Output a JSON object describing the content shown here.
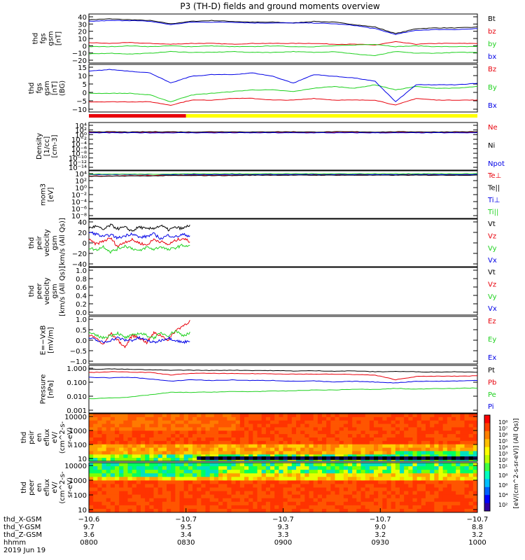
{
  "title": "P3 (TH-D) fields and ground moments overview",
  "colors": {
    "black": "#000000",
    "red": "#e8000b",
    "green": "#1fd11f",
    "blue": "#0000e6",
    "yellow": "#ffff00"
  },
  "chart_data": [
    {
      "id": "fgs-gsm-mag",
      "type": "line",
      "ylabel": [
        "thd",
        "fgs",
        "gsm",
        "[nT]"
      ],
      "yticks": [
        "40",
        "30",
        "20",
        "10",
        "0",
        "−10",
        "−20"
      ],
      "ylim": [
        -20,
        40
      ],
      "series": [
        {
          "name": "Bt",
          "color": "#000000",
          "values": [
            33,
            34,
            33,
            32,
            28,
            31,
            32,
            31,
            30,
            30,
            29,
            31,
            30,
            27,
            24,
            16,
            22,
            23,
            23,
            24
          ]
        },
        {
          "name": "bz",
          "color": "#e8000b",
          "values": [
            5,
            4,
            5,
            4,
            3,
            4,
            4,
            3,
            4,
            4,
            4,
            4,
            3,
            3,
            2,
            6,
            3,
            4,
            4,
            4
          ]
        },
        {
          "name": "by",
          "color": "#1fd11f",
          "values": [
            0,
            0,
            1,
            0,
            1,
            0,
            1,
            0,
            0,
            1,
            0,
            0,
            1,
            2,
            3,
            0,
            1,
            0,
            0,
            0
          ]
        },
        {
          "name": "bx",
          "color": "#0000e6",
          "values": [
            31,
            32,
            32,
            31,
            27,
            30,
            30,
            30,
            29,
            29,
            29,
            29,
            28,
            26,
            22,
            15,
            20,
            21,
            21,
            22
          ]
        }
      ],
      "extra_series": [
        {
          "name": "bx",
          "color": "#1fd11f",
          "values": [
            -9,
            -8,
            -9,
            -8,
            -6,
            -7,
            -7,
            -6,
            -7,
            -7,
            -6,
            -7,
            -6,
            -9,
            -11,
            -6,
            -8,
            -8,
            -7,
            -7
          ]
        }
      ]
    },
    {
      "id": "fgs-gsm-components",
      "type": "line",
      "ylabel": [
        "thd",
        "fgs",
        "gsm",
        "[nT]",
        "(BG)"
      ],
      "yticks": [
        "15",
        "10",
        "5",
        "0",
        "−5",
        "−10"
      ],
      "ylim": [
        -13,
        15
      ],
      "series": [
        {
          "name": "Bz",
          "color": "#e8000b",
          "values": [
            -7,
            -7,
            -7,
            -7,
            -9,
            -6,
            -6,
            -5,
            -5,
            -6,
            -6,
            -5,
            -6,
            -6,
            -6,
            -9,
            -5,
            -6,
            -6,
            -6
          ]
        },
        {
          "name": "By",
          "color": "#1fd11f",
          "values": [
            -2,
            -2,
            -2,
            -3,
            -7,
            -3,
            -2,
            -1,
            0,
            0,
            -1,
            1,
            2,
            1,
            3,
            0,
            2,
            1,
            1,
            2
          ]
        },
        {
          "name": "Bx",
          "color": "#0000e6",
          "values": [
            11,
            12,
            11,
            10,
            4,
            8,
            9,
            9,
            10,
            8,
            4,
            9,
            8,
            7,
            5,
            -7,
            3,
            3,
            3,
            4
          ]
        }
      ]
    },
    {
      "id": "density",
      "type": "line",
      "ylabel": [
        "Density",
        "[1/cc]",
        "[cm-3]"
      ],
      "yticks": [
        "10⁴",
        "10²",
        "10⁰",
        "10⁻²",
        "10⁻⁴",
        "10⁻⁶",
        "10⁻⁸",
        "10⁻¹⁰",
        "10⁻¹²",
        "10⁻¹⁴"
      ],
      "ylim": [
        -14,
        4
      ],
      "series": [
        {
          "name": "Ne",
          "color": "#e8000b",
          "values": [
            0.3,
            0.3,
            0.2,
            0.3,
            0.3,
            0.2,
            0.3,
            0.3,
            0.2,
            0.3,
            0.3,
            0.2,
            0.3,
            0.3,
            0.2,
            0.3,
            0.3,
            0.2,
            0.3,
            0.3
          ]
        },
        {
          "name": "Ni",
          "color": "#000000",
          "values": [
            0.5,
            0.5,
            0.4,
            0.5,
            0.5,
            0.4,
            0.5,
            0.5,
            0.4,
            0.5,
            0.5,
            0.4,
            0.5,
            0.5,
            0.4,
            0.5,
            0.5,
            0.4,
            0.5,
            0.5
          ]
        },
        {
          "name": "Npot",
          "color": "#0000e6",
          "values": [
            0.1,
            0.1,
            0.1,
            0.1,
            0.1,
            0.1,
            0.1,
            0.1,
            0.1,
            0.1,
            0.1,
            0.1,
            0.1,
            0.1,
            0.1,
            0.1,
            0.1,
            0.1,
            0.1,
            0.1
          ]
        }
      ]
    },
    {
      "id": "temperature",
      "type": "line",
      "ylabel": [
        "mom3",
        "[eV]"
      ],
      "yticks": [
        "10⁴",
        "10²",
        "10⁰",
        "10⁻²",
        "10⁻⁴",
        "10⁻⁶",
        "10⁻⁸"
      ],
      "ylim": [
        -9,
        4
      ],
      "series": [
        {
          "name": "Te⊥",
          "color": "#e8000b",
          "values": [
            2.6,
            2.6,
            2.7,
            2.7,
            2.8,
            2.8,
            2.8,
            2.8,
            2.9,
            2.9,
            2.9,
            2.9,
            2.9,
            2.9,
            2.9,
            2.9,
            2.9,
            2.9,
            2.9,
            2.9
          ]
        },
        {
          "name": "Te||",
          "color": "#000000",
          "values": [
            2.5,
            2.5,
            2.6,
            2.6,
            2.7,
            2.7,
            2.7,
            2.7,
            2.8,
            2.8,
            2.8,
            2.8,
            2.8,
            2.8,
            2.8,
            2.8,
            2.8,
            2.8,
            2.8,
            2.8
          ]
        },
        {
          "name": "Ti⊥",
          "color": "#0000e6",
          "values": [
            3.0,
            3.0,
            3.0,
            3.0,
            3.0,
            3.0,
            3.0,
            3.0,
            3.0,
            3.0,
            3.0,
            3.0,
            3.0,
            3.0,
            3.0,
            3.0,
            3.0,
            3.0,
            3.0,
            3.0
          ]
        },
        {
          "name": "Ti||",
          "color": "#1fd11f",
          "values": [
            3.1,
            3.1,
            3.1,
            3.1,
            3.1,
            3.2,
            3.2,
            3.2,
            3.2,
            3.2,
            3.2,
            3.2,
            3.2,
            3.2,
            3.2,
            3.2,
            3.2,
            3.2,
            3.2,
            3.2
          ]
        }
      ]
    },
    {
      "id": "peir-velocity",
      "type": "line",
      "ylabel": [
        "thd",
        "peir",
        "velocity",
        "gsm",
        "[km/s (All Qs)]"
      ],
      "yticks": [
        "40",
        "20",
        "0",
        "−20",
        "−40"
      ],
      "ylim": [
        -40,
        40
      ],
      "x_fraction_end": 0.26,
      "series": [
        {
          "name": "Vt",
          "color": "#000000",
          "values": [
            25,
            28,
            22,
            30,
            24,
            26,
            20,
            27,
            23,
            25,
            29,
            22,
            26,
            24,
            30
          ]
        },
        {
          "name": "Vz",
          "color": "#e8000b",
          "values": [
            5,
            -2,
            3,
            8,
            -6,
            2,
            5,
            0,
            -4,
            6,
            2,
            -3,
            4,
            8,
            2
          ]
        },
        {
          "name": "Vy",
          "color": "#1fd11f",
          "values": [
            -8,
            -12,
            -6,
            -15,
            -10,
            -5,
            -9,
            -14,
            -7,
            -11,
            -6,
            -12,
            -8,
            -4,
            -6
          ]
        },
        {
          "name": "Vx",
          "color": "#0000e6",
          "values": [
            18,
            15,
            10,
            14,
            8,
            12,
            16,
            9,
            11,
            15,
            7,
            13,
            10,
            14,
            12
          ]
        }
      ]
    },
    {
      "id": "peer-velocity",
      "type": "line",
      "ylabel": [
        "thd",
        "peer",
        "velocity",
        "gsm",
        "[km/s (All Qs)]"
      ],
      "yticks": [
        "1.0",
        "0.8",
        "0.6",
        "0.4",
        "0.2",
        "0.0"
      ],
      "ylim": [
        0,
        1
      ],
      "legend": [
        "Vt",
        "Vz",
        "Vy",
        "Vx"
      ],
      "series": []
    },
    {
      "id": "efield",
      "type": "line",
      "ylabel": [
        "E=−VxB",
        "[mV/m]"
      ],
      "yticks": [
        "1.0",
        "0.5",
        "0.0",
        "−0.5",
        "−1.0"
      ],
      "ylim": [
        -1,
        1
      ],
      "x_fraction_end": 0.26,
      "series": [
        {
          "name": "Ez",
          "color": "#e8000b",
          "values": [
            0.2,
            0.1,
            -0.2,
            0.3,
            0.0,
            -0.3,
            0.2,
            0.1,
            -0.1,
            0.3,
            0.2,
            0.0,
            0.4,
            0.6,
            0.8
          ]
        },
        {
          "name": "Ey",
          "color": "#1fd11f",
          "values": [
            0.3,
            0.2,
            0.1,
            0.2,
            0.3,
            0.1,
            0.2,
            0.3,
            0.2,
            0.1,
            0.3,
            0.2,
            0.4,
            0.2,
            0.3
          ]
        },
        {
          "name": "Ex",
          "color": "#0000e6",
          "values": [
            0.1,
            0.0,
            -0.1,
            0.0,
            0.1,
            0.0,
            0.0,
            0.1,
            0.0,
            -0.1,
            0.0,
            0.1,
            0.0,
            -0.1,
            0.0
          ]
        }
      ]
    },
    {
      "id": "pressure",
      "type": "line",
      "ylabel": [
        "Pressure",
        "[nPa]"
      ],
      "yticks": [
        "1.000",
        "0.100",
        "0.010",
        "0.001"
      ],
      "ylim": [
        -3,
        0
      ],
      "log": true,
      "series": [
        {
          "name": "Pt",
          "color": "#000000",
          "values": [
            -0.25,
            -0.22,
            -0.25,
            -0.28,
            -0.3,
            -0.3,
            -0.32,
            -0.3,
            -0.32,
            -0.33,
            -0.35,
            -0.34,
            -0.36,
            -0.35,
            -0.4,
            -0.38,
            -0.4,
            -0.42,
            -0.4,
            -0.42
          ]
        },
        {
          "name": "Pb",
          "color": "#e8000b",
          "values": [
            -0.45,
            -0.4,
            -0.42,
            -0.45,
            -0.6,
            -0.5,
            -0.5,
            -0.52,
            -0.52,
            -0.53,
            -0.55,
            -0.55,
            -0.56,
            -0.57,
            -0.62,
            -0.9,
            -0.7,
            -0.68,
            -0.68,
            -0.66
          ]
        },
        {
          "name": "Pe",
          "color": "#1fd11f",
          "values": [
            -2.1,
            -2.05,
            -2.0,
            -1.85,
            -1.7,
            -1.7,
            -1.68,
            -1.65,
            -1.65,
            -1.62,
            -1.6,
            -1.55,
            -1.55,
            -1.5,
            -1.52,
            -1.45,
            -1.5,
            -1.45,
            -1.45,
            -1.42
          ]
        },
        {
          "name": "Pi",
          "color": "#0000e6",
          "values": [
            -0.75,
            -0.78,
            -0.75,
            -0.85,
            -1.0,
            -0.9,
            -0.95,
            -0.92,
            -0.95,
            -0.95,
            -1.0,
            -0.98,
            -1.05,
            -1.0,
            -1.05,
            -1.1,
            -1.0,
            -1.0,
            -0.98,
            -0.95
          ]
        }
      ]
    },
    {
      "id": "peir-eflux",
      "type": "heatmap",
      "ylabel": [
        "thd",
        "peir",
        "en",
        "eflux",
        "eV/",
        "(cm^2-s-",
        "sr-eV)"
      ],
      "yticks": [
        "10000",
        "1000",
        "100",
        "10"
      ]
    },
    {
      "id": "peer-eflux",
      "type": "heatmap",
      "ylabel": [
        "thd",
        "peer",
        "en",
        "eflux",
        "eV/",
        "(cm^2-s-",
        "sr-eV)"
      ],
      "yticks": [
        "10000",
        "1000",
        "100",
        "10"
      ]
    }
  ],
  "colorbar": {
    "ticks": [
      "10⁸",
      "10⁷",
      "10⁶",
      "10⁵",
      "10⁴",
      "10³",
      "10²",
      "10¹"
    ],
    "ticks_lower": [
      "10⁸",
      "10⁶",
      "10⁴",
      "10²"
    ],
    "label": "[eV/(cm^2-s-sr-eV)] (All Qs)]"
  },
  "flag_bar": {
    "red_until_fraction": 0.25,
    "colors": [
      "#e8000b",
      "#ffff00"
    ]
  },
  "xaxis": {
    "ticks": [
      "0800",
      "0830",
      "0900",
      "0930",
      "1000"
    ],
    "rows": [
      {
        "label": "thd_X-GSM",
        "values": [
          "−10.6",
          "−10.7",
          "−10.7",
          "−10.7",
          "−10.7"
        ]
      },
      {
        "label": "thd_Y-GSM",
        "values": [
          "9.7",
          "9.5",
          "9.3",
          "9.0",
          "8.8"
        ]
      },
      {
        "label": "thd_Z-GSM",
        "values": [
          "3.6",
          "3.4",
          "3.3",
          "3.2",
          "3.2"
        ]
      },
      {
        "label": "hhmm",
        "values": [
          "0800",
          "0830",
          "0900",
          "0930",
          "1000"
        ]
      }
    ],
    "date": "2019 Jun 19"
  }
}
